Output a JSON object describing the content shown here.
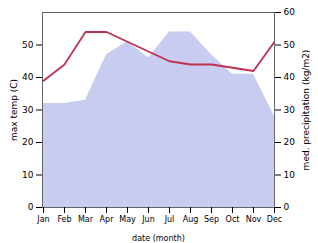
{
  "chart_data": {
    "type": "line",
    "xlabel": "date (month)",
    "ylabel": "max temp (C)",
    "y2label": "med. precipitation (kg/m2)",
    "categories": [
      "Jan",
      "Feb",
      "Mar",
      "Apr",
      "May",
      "Jun",
      "Jul",
      "Aug",
      "Sep",
      "Oct",
      "Nov",
      "Dec"
    ],
    "series": [
      {
        "type": "area",
        "color": "#c8ccf0",
        "axis": "y2",
        "values": [
          32,
          32,
          33,
          47,
          51,
          46,
          54,
          54,
          47,
          41,
          41,
          28
        ]
      },
      {
        "type": "line",
        "color": "#c03050",
        "values": [
          39,
          44,
          54,
          54,
          51,
          48,
          45,
          44,
          44,
          43,
          42,
          51
        ]
      }
    ],
    "ylim": [
      0,
      60
    ],
    "yticks": [
      0,
      10,
      20,
      30,
      40,
      50
    ],
    "y2lim": [
      0,
      60
    ],
    "y2ticks": [
      0,
      10,
      20,
      30,
      40,
      50,
      60
    ],
    "grid": false
  }
}
